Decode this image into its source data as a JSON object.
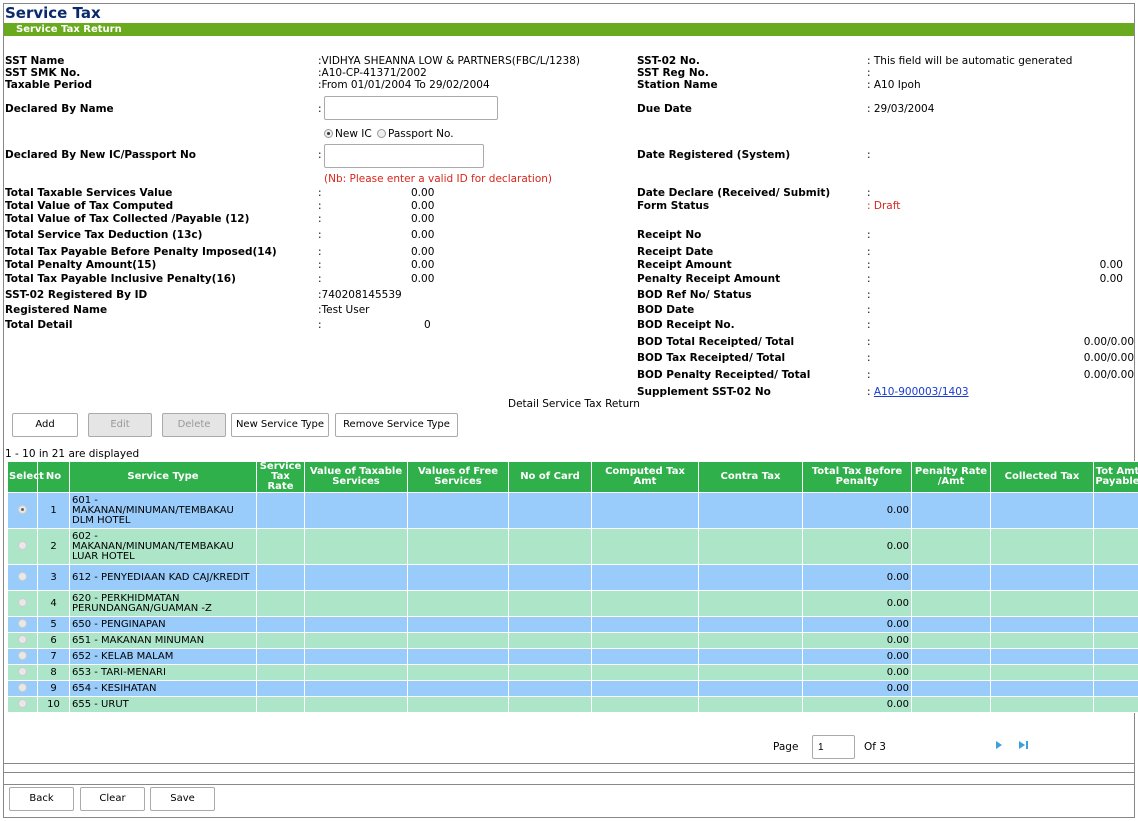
{
  "page": {
    "title": "Service Tax",
    "section": "Service Tax Return"
  },
  "left": {
    "sst_name": {
      "label": "SST Name",
      "value": ":VIDHYA SHEANNA LOW & PARTNERS(FBC/L/1238)"
    },
    "sst_smk": {
      "label": "SST SMK No.",
      "value": ":A10-CP-41371/2002"
    },
    "taxable_period": {
      "label": "Taxable Period",
      "value": ":From 01/01/2004 To 29/02/2004"
    },
    "declared_by_name": {
      "label": "Declared By Name",
      "colon": ":"
    },
    "id_options": {
      "new_ic": "New IC",
      "passport": "Passport No."
    },
    "declared_by_ic": {
      "label": "Declared By New IC/Passport No",
      "colon": ":"
    },
    "ic_note": "(Nb: Please enter a valid ID for declaration)",
    "totals": [
      {
        "label": "Total Taxable Services Value",
        "colon": ":",
        "value": "0.00"
      },
      {
        "label": "Total Value of Tax Computed",
        "colon": ":",
        "value": "0.00"
      },
      {
        "label": "Total Value of Tax Collected /Payable (12)",
        "colon": ":",
        "value": "0.00"
      },
      {
        "label": "Total Service Tax Deduction (13c)",
        "colon": ":",
        "value": "0.00"
      },
      {
        "label": "Total Tax Payable Before Penalty Imposed(14)",
        "colon": ":",
        "value": "0.00"
      },
      {
        "label": "Total Penalty Amount(15)",
        "colon": ":",
        "value": "0.00"
      },
      {
        "label": "Total Tax Payable Inclusive Penalty(16)",
        "colon": ":",
        "value": "0.00"
      }
    ],
    "registered_by_id": {
      "label": "SST-02 Registered By ID",
      "value": ":740208145539"
    },
    "registered_name": {
      "label": "Registered Name",
      "value": ":Test User"
    },
    "total_detail": {
      "label": "Total Detail",
      "colon": ":",
      "value": "0"
    }
  },
  "right": {
    "sst02_no": {
      "label": "SST-02 No.",
      "value": ": This field will be automatic generated"
    },
    "sst_reg_no": {
      "label": "SST Reg No.",
      "value": ":"
    },
    "station_name": {
      "label": "Station Name",
      "value": ": A10 Ipoh"
    },
    "due_date": {
      "label": "Due Date",
      "value": ": 29/03/2004"
    },
    "date_registered": {
      "label": "Date Registered (System)",
      "value": ":"
    },
    "date_declare": {
      "label": "Date Declare (Received/ Submit)",
      "value": ":"
    },
    "form_status": {
      "label": "Form Status",
      "value": ": Draft"
    },
    "receipt_no": {
      "label": "Receipt No",
      "value": ":"
    },
    "receipt_date": {
      "label": "Receipt Date",
      "value": ":"
    },
    "receipt_amount": {
      "label": "Receipt Amount",
      "value": ":",
      "amount": "0.00"
    },
    "penalty_receipt_amount": {
      "label": "Penalty Receipt Amount",
      "value": ":",
      "amount": "0.00"
    },
    "bod_ref": {
      "label": "BOD Ref No/ Status",
      "value": ":"
    },
    "bod_date": {
      "label": "BOD Date",
      "value": ":"
    },
    "bod_receipt_no": {
      "label": "BOD Receipt No.",
      "value": ":"
    },
    "bod_total": {
      "label": "BOD Total Receipted/ Total",
      "value": ":",
      "amount": "0.00/0.00"
    },
    "bod_tax": {
      "label": "BOD Tax Receipted/ Total",
      "value": ":",
      "amount": "0.00/0.00"
    },
    "bod_penalty": {
      "label": "BOD Penalty Receipted/ Total",
      "value": ":",
      "amount": "0.00/0.00"
    },
    "supplement": {
      "label": "Supplement SST-02 No",
      "colon": ": ",
      "link": "A10-900003/1403"
    }
  },
  "detail_caption": "Detail Service Tax Return",
  "toolbar": {
    "add": "Add",
    "edit": "Edit",
    "delete": "Delete",
    "new_service_type": "New Service Type",
    "remove_service_type": "Remove Service Type"
  },
  "count_text": "1 - 10 in 21 are displayed",
  "table": {
    "headers": [
      "Select",
      "No",
      "Service Type",
      "Service Tax Rate",
      "Value of Taxable Services",
      "Values of Free Services",
      "No of Card",
      "Computed Tax Amt",
      "Contra Tax",
      "Total Tax Before Penalty",
      "Penalty Rate /Amt",
      "Collected Tax",
      "Tot Amt Payable"
    ],
    "rows": [
      {
        "no": "1",
        "service": "601 - MAKANAN/MINUMAN/TEMBAKAU DLM HOTEL",
        "total": "0.00",
        "selected": true
      },
      {
        "no": "2",
        "service": "602 - MAKANAN/MINUMAN/TEMBAKAU LUAR HOTEL",
        "total": "0.00",
        "selected": false
      },
      {
        "no": "3",
        "service": "612 - PENYEDIAAN KAD CAJ/KREDIT",
        "total": "0.00",
        "selected": false
      },
      {
        "no": "4",
        "service": "620 - PERKHIDMATAN PERUNDANGAN/GUAMAN -Z",
        "total": "0.00",
        "selected": false
      },
      {
        "no": "5",
        "service": "650 - PENGINAPAN",
        "total": "0.00",
        "selected": false
      },
      {
        "no": "6",
        "service": "651 - MAKANAN MINUMAN",
        "total": "0.00",
        "selected": false
      },
      {
        "no": "7",
        "service": "652 - KELAB MALAM",
        "total": "0.00",
        "selected": false
      },
      {
        "no": "8",
        "service": "653 - TARI-MENARI",
        "total": "0.00",
        "selected": false
      },
      {
        "no": "9",
        "service": "654 - KESIHATAN",
        "total": "0.00",
        "selected": false
      },
      {
        "no": "10",
        "service": "655 - URUT",
        "total": "0.00",
        "selected": false
      }
    ]
  },
  "pager": {
    "label": "Page",
    "value": "1",
    "of": "Of 3"
  },
  "footer": {
    "back": "Back",
    "clear": "Clear",
    "save": "Save"
  }
}
